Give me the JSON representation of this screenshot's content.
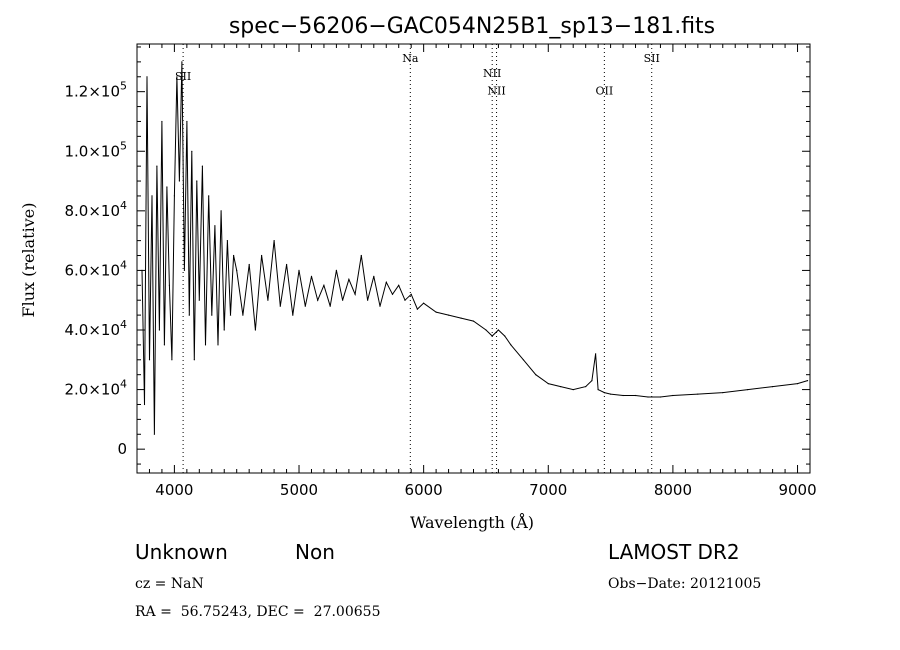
{
  "chart_data": {
    "type": "line",
    "title": "spec−56206−GAC054N25B1_sp13−181.fits",
    "xlabel": "Wavelength (Å)",
    "ylabel": "Flux (relative)",
    "xlim": [
      3700,
      9100
    ],
    "ylim": [
      -8000,
      136000
    ],
    "x_ticks": [
      4000,
      5000,
      6000,
      7000,
      8000,
      9000
    ],
    "y_ticks": [
      {
        "value": 0,
        "mantissa": "0",
        "exp": ""
      },
      {
        "value": 20000,
        "mantissa": "2.0×10",
        "exp": "4"
      },
      {
        "value": 40000,
        "mantissa": "4.0×10",
        "exp": "4"
      },
      {
        "value": 60000,
        "mantissa": "6.0×10",
        "exp": "4"
      },
      {
        "value": 80000,
        "mantissa": "8.0×10",
        "exp": "4"
      },
      {
        "value": 100000,
        "mantissa": "1.0×10",
        "exp": "5"
      },
      {
        "value": 120000,
        "mantissa": "1.2×10",
        "exp": "5"
      }
    ],
    "grid": false,
    "emission_lines": [
      {
        "label": "SII",
        "wavelength": 4070,
        "label_flux": 124000
      },
      {
        "label": "Na",
        "wavelength": 5893,
        "label_flux": 130000
      },
      {
        "label": "NII",
        "wavelength": 6550,
        "label_flux": 125000
      },
      {
        "label": "NII",
        "wavelength": 6585,
        "label_flux": 119000
      },
      {
        "label": "OII",
        "wavelength": 7450,
        "label_flux": 119000
      },
      {
        "label": "SII",
        "wavelength": 7830,
        "label_flux": 130000
      }
    ],
    "series": [
      {
        "name": "flux",
        "x": [
          3740,
          3760,
          3780,
          3800,
          3820,
          3840,
          3860,
          3880,
          3900,
          3920,
          3940,
          3960,
          3980,
          4000,
          4020,
          4040,
          4060,
          4080,
          4100,
          4120,
          4140,
          4160,
          4180,
          4200,
          4225,
          4250,
          4275,
          4300,
          4325,
          4350,
          4375,
          4400,
          4425,
          4450,
          4475,
          4500,
          4550,
          4600,
          4650,
          4700,
          4750,
          4800,
          4850,
          4900,
          4950,
          5000,
          5050,
          5100,
          5150,
          5200,
          5250,
          5300,
          5350,
          5400,
          5450,
          5500,
          5550,
          5600,
          5650,
          5700,
          5750,
          5800,
          5850,
          5900,
          5950,
          6000,
          6100,
          6200,
          6300,
          6400,
          6500,
          6550,
          6600,
          6650,
          6700,
          6800,
          6900,
          7000,
          7100,
          7200,
          7300,
          7350,
          7380,
          7400,
          7450,
          7500,
          7600,
          7700,
          7800,
          7900,
          8000,
          8200,
          8400,
          8600,
          8800,
          9000,
          9080
        ],
        "y": [
          60000,
          15000,
          125000,
          30000,
          85000,
          5000,
          95000,
          40000,
          110000,
          35000,
          88000,
          55000,
          30000,
          85000,
          125000,
          90000,
          130000,
          60000,
          110000,
          45000,
          100000,
          30000,
          90000,
          50000,
          95000,
          35000,
          85000,
          45000,
          75000,
          35000,
          80000,
          40000,
          70000,
          45000,
          65000,
          60000,
          45000,
          62000,
          40000,
          65000,
          50000,
          70000,
          48000,
          62000,
          45000,
          60000,
          48000,
          58000,
          50000,
          55000,
          48000,
          60000,
          50000,
          57000,
          52000,
          65000,
          50000,
          58000,
          48000,
          56000,
          52000,
          55000,
          50000,
          52000,
          47000,
          49000,
          46000,
          45000,
          44000,
          43000,
          40000,
          38000,
          40000,
          38000,
          35000,
          30000,
          25000,
          22000,
          21000,
          20000,
          21000,
          23000,
          32000,
          20000,
          19000,
          18500,
          18000,
          18000,
          17500,
          17500,
          18000,
          18500,
          19000,
          20000,
          21000,
          22000,
          23000
        ]
      }
    ]
  },
  "footer": {
    "class_label": "Unknown",
    "subclass_label": "Non",
    "cz_text": "cz = NaN",
    "coords_text": "RA =  56.75243, DEC =  27.00655",
    "survey_label": "LAMOST DR2",
    "obs_date_text": "Obs−Date: 20121005"
  }
}
